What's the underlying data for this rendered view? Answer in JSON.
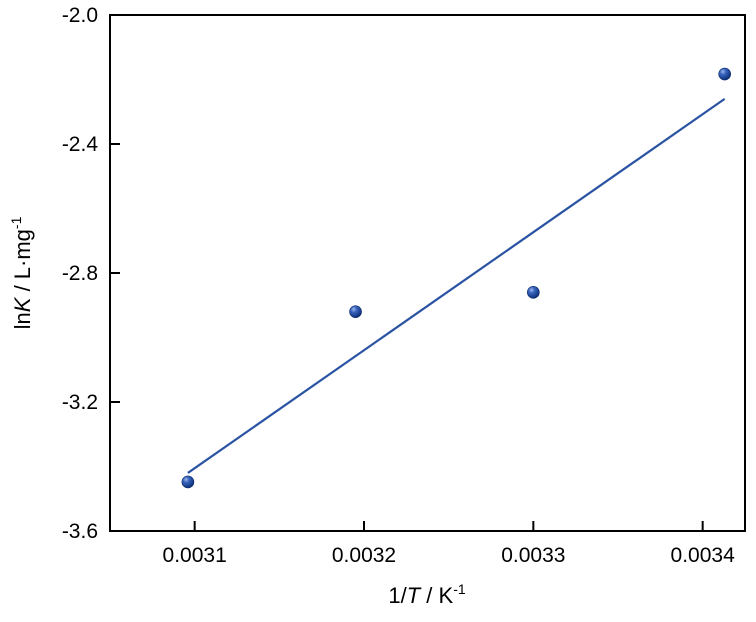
{
  "chart_data": {
    "type": "scatter",
    "xlabel_parts": {
      "pre": "1/",
      "italic": "T",
      "post": " / K",
      "sup": "-1"
    },
    "ylabel_parts": {
      "pre": "ln",
      "italic": "K",
      "post": " / L·mg",
      "sup": "-1"
    },
    "xlim": [
      0.00305,
      0.003425
    ],
    "ylim": [
      -3.6,
      -2.0
    ],
    "x_ticks": [
      0.0031,
      0.0032,
      0.0033,
      0.0034
    ],
    "x_tick_labels": [
      "0.0031",
      "0.0032",
      "0.0033",
      "0.0034"
    ],
    "y_ticks": [
      -3.6,
      -3.2,
      -2.8,
      -2.4,
      -2.0
    ],
    "y_tick_labels": [
      "-3.6",
      "-3.2",
      "-2.8",
      "-2.4",
      "-2.0"
    ],
    "grid": false,
    "series": [
      {
        "kind": "points",
        "x": [
          0.003096,
          0.003195,
          0.0033,
          0.003413
        ],
        "y": [
          -3.448,
          -2.92,
          -2.86,
          -2.183
        ],
        "color": "#1f4e9c"
      },
      {
        "kind": "fit_line",
        "x": [
          0.003096,
          0.003413
        ],
        "y": [
          -3.42,
          -2.26
        ],
        "color": "#2a54a3"
      }
    ]
  }
}
